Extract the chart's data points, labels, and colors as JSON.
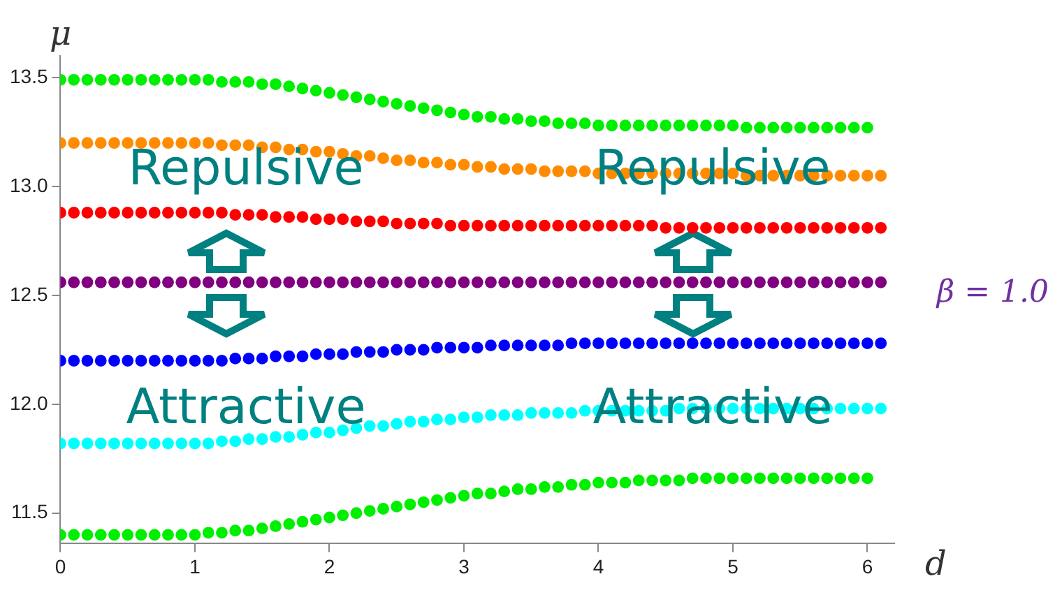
{
  "chart_data": {
    "type": "scatter",
    "xlabel": "d",
    "ylabel": "μ",
    "marker": "circle",
    "grid": false,
    "legend": false,
    "xlim": [
      0,
      6.2
    ],
    "xticks": [
      0,
      1,
      2,
      3,
      4,
      5,
      6
    ],
    "ylim": [
      11.36,
      13.6
    ],
    "yticks": [
      {
        "value": 11.5,
        "label": "11.5"
      },
      {
        "value": 12,
        "label": "12.0"
      },
      {
        "value": 12.5,
        "label": "12.5"
      },
      {
        "value": 13,
        "label": "13.0"
      },
      {
        "value": 13.5,
        "label": "13.5"
      }
    ],
    "x": [
      0,
      0.1,
      0.2,
      0.3,
      0.4,
      0.5,
      0.6,
      0.7,
      0.8,
      0.9,
      1,
      1.1,
      1.2,
      1.3,
      1.4,
      1.5,
      1.6,
      1.7,
      1.8,
      1.9,
      2,
      2.1,
      2.2,
      2.3,
      2.4,
      2.5,
      2.6,
      2.7,
      2.8,
      2.9,
      3,
      3.1,
      3.2,
      3.3,
      3.4,
      3.5,
      3.6,
      3.7,
      3.8,
      3.9,
      4,
      4.1,
      4.2,
      4.3,
      4.4,
      4.5,
      4.6,
      4.7,
      4.8,
      4.9,
      5,
      5.1,
      5.2,
      5.3,
      5.4,
      5.5,
      5.6,
      5.7,
      5.8,
      5.9,
      6,
      6.1
    ],
    "series": [
      {
        "color": "#00ee00",
        "x": [
          0,
          0.1,
          0.2,
          0.3,
          0.4,
          0.5,
          0.6,
          0.7,
          0.8,
          0.9,
          1,
          1.1,
          1.2,
          1.3,
          1.4,
          1.5,
          1.6,
          1.7,
          1.8,
          1.9,
          2,
          2.1,
          2.2,
          2.3,
          2.4,
          2.5,
          2.6,
          2.7,
          2.8,
          2.9,
          3,
          3.1,
          3.2,
          3.3,
          3.4,
          3.5,
          3.6,
          3.7,
          3.8,
          3.9,
          4,
          4.1,
          4.2,
          4.3,
          4.4,
          4.5,
          4.6,
          4.7,
          4.8,
          4.9,
          5,
          5.1,
          5.2,
          5.3,
          5.4,
          5.5,
          5.6,
          5.7,
          5.8,
          5.9,
          6
        ],
        "values": [
          13.49,
          13.49,
          13.49,
          13.49,
          13.49,
          13.49,
          13.49,
          13.49,
          13.49,
          13.49,
          13.49,
          13.49,
          13.48,
          13.48,
          13.48,
          13.47,
          13.47,
          13.46,
          13.45,
          13.44,
          13.43,
          13.42,
          13.41,
          13.4,
          13.39,
          13.38,
          13.37,
          13.36,
          13.35,
          13.34,
          13.33,
          13.32,
          13.32,
          13.31,
          13.31,
          13.3,
          13.3,
          13.29,
          13.29,
          13.29,
          13.28,
          13.28,
          13.28,
          13.28,
          13.28,
          13.28,
          13.28,
          13.28,
          13.28,
          13.28,
          13.28,
          13.27,
          13.27,
          13.27,
          13.27,
          13.27,
          13.27,
          13.27,
          13.27,
          13.27,
          13.27
        ]
      },
      {
        "color": "#ff8c00",
        "values": [
          13.2,
          13.2,
          13.2,
          13.2,
          13.2,
          13.2,
          13.2,
          13.2,
          13.2,
          13.2,
          13.2,
          13.2,
          13.19,
          13.19,
          13.19,
          13.18,
          13.18,
          13.17,
          13.17,
          13.16,
          13.16,
          13.15,
          13.14,
          13.14,
          13.13,
          13.12,
          13.12,
          13.11,
          13.11,
          13.1,
          13.1,
          13.09,
          13.09,
          13.08,
          13.08,
          13.08,
          13.07,
          13.07,
          13.07,
          13.07,
          13.06,
          13.06,
          13.06,
          13.06,
          13.06,
          13.06,
          13.06,
          13.06,
          13.06,
          13.06,
          13.06,
          13.05,
          13.05,
          13.05,
          13.05,
          13.05,
          13.05,
          13.05,
          13.05,
          13.05,
          13.05,
          13.05
        ]
      },
      {
        "color": "#ff0000",
        "values": [
          12.88,
          12.88,
          12.88,
          12.88,
          12.88,
          12.88,
          12.88,
          12.88,
          12.88,
          12.88,
          12.88,
          12.88,
          12.88,
          12.87,
          12.87,
          12.87,
          12.86,
          12.86,
          12.86,
          12.85,
          12.85,
          12.85,
          12.84,
          12.84,
          12.84,
          12.83,
          12.83,
          12.83,
          12.83,
          12.82,
          12.82,
          12.82,
          12.82,
          12.82,
          12.82,
          12.82,
          12.82,
          12.82,
          12.82,
          12.82,
          12.82,
          12.82,
          12.82,
          12.82,
          12.82,
          12.81,
          12.81,
          12.81,
          12.81,
          12.81,
          12.81,
          12.81,
          12.81,
          12.81,
          12.81,
          12.81,
          12.81,
          12.81,
          12.81,
          12.81,
          12.81,
          12.81
        ]
      },
      {
        "color": "#800080",
        "values": [
          12.56,
          12.56,
          12.56,
          12.56,
          12.56,
          12.56,
          12.56,
          12.56,
          12.56,
          12.56,
          12.56,
          12.56,
          12.56,
          12.56,
          12.56,
          12.56,
          12.56,
          12.56,
          12.56,
          12.56,
          12.56,
          12.56,
          12.56,
          12.56,
          12.56,
          12.56,
          12.56,
          12.56,
          12.56,
          12.56,
          12.56,
          12.56,
          12.56,
          12.56,
          12.56,
          12.56,
          12.56,
          12.56,
          12.56,
          12.56,
          12.56,
          12.56,
          12.56,
          12.56,
          12.56,
          12.56,
          12.56,
          12.56,
          12.56,
          12.56,
          12.56,
          12.56,
          12.56,
          12.56,
          12.56,
          12.56,
          12.56,
          12.56,
          12.56,
          12.56,
          12.56,
          12.56
        ]
      },
      {
        "color": "#0000ff",
        "values": [
          12.2,
          12.2,
          12.2,
          12.2,
          12.2,
          12.2,
          12.2,
          12.2,
          12.2,
          12.2,
          12.2,
          12.2,
          12.2,
          12.21,
          12.21,
          12.21,
          12.22,
          12.22,
          12.22,
          12.23,
          12.23,
          12.23,
          12.24,
          12.24,
          12.24,
          12.25,
          12.25,
          12.25,
          12.26,
          12.26,
          12.26,
          12.26,
          12.27,
          12.27,
          12.27,
          12.27,
          12.27,
          12.27,
          12.28,
          12.28,
          12.28,
          12.28,
          12.28,
          12.28,
          12.28,
          12.28,
          12.28,
          12.28,
          12.28,
          12.28,
          12.28,
          12.28,
          12.28,
          12.28,
          12.28,
          12.28,
          12.28,
          12.28,
          12.28,
          12.28,
          12.28,
          12.28
        ]
      },
      {
        "color": "#00ffff",
        "values": [
          11.82,
          11.82,
          11.82,
          11.82,
          11.82,
          11.82,
          11.82,
          11.82,
          11.82,
          11.82,
          11.82,
          11.82,
          11.83,
          11.83,
          11.84,
          11.84,
          11.85,
          11.85,
          11.86,
          11.87,
          11.87,
          11.88,
          11.89,
          11.9,
          11.9,
          11.91,
          11.92,
          11.92,
          11.93,
          11.93,
          11.94,
          11.94,
          11.95,
          11.95,
          11.95,
          11.96,
          11.96,
          11.96,
          11.96,
          11.97,
          11.97,
          11.97,
          11.97,
          11.97,
          11.97,
          11.97,
          11.98,
          11.98,
          11.98,
          11.98,
          11.98,
          11.98,
          11.98,
          11.98,
          11.98,
          11.98,
          11.98,
          11.98,
          11.98,
          11.98,
          11.98,
          11.98
        ]
      },
      {
        "color": "#00ee00",
        "x": [
          0,
          0.1,
          0.2,
          0.3,
          0.4,
          0.5,
          0.6,
          0.7,
          0.8,
          0.9,
          1,
          1.1,
          1.2,
          1.3,
          1.4,
          1.5,
          1.6,
          1.7,
          1.8,
          1.9,
          2,
          2.1,
          2.2,
          2.3,
          2.4,
          2.5,
          2.6,
          2.7,
          2.8,
          2.9,
          3,
          3.1,
          3.2,
          3.3,
          3.4,
          3.5,
          3.6,
          3.7,
          3.8,
          3.9,
          4,
          4.1,
          4.2,
          4.3,
          4.4,
          4.5,
          4.6,
          4.7,
          4.8,
          4.9,
          5,
          5.1,
          5.2,
          5.3,
          5.4,
          5.5,
          5.6,
          5.7,
          5.8,
          5.9,
          6
        ],
        "values": [
          11.4,
          11.4,
          11.4,
          11.4,
          11.4,
          11.4,
          11.4,
          11.4,
          11.4,
          11.4,
          11.4,
          11.41,
          11.41,
          11.42,
          11.42,
          11.43,
          11.44,
          11.45,
          11.46,
          11.47,
          11.48,
          11.49,
          11.5,
          11.51,
          11.52,
          11.53,
          11.54,
          11.55,
          11.56,
          11.57,
          11.58,
          11.59,
          11.59,
          11.6,
          11.61,
          11.61,
          11.62,
          11.62,
          11.63,
          11.63,
          11.64,
          11.64,
          11.64,
          11.65,
          11.65,
          11.65,
          11.65,
          11.66,
          11.66,
          11.66,
          11.66,
          11.66,
          11.66,
          11.66,
          11.66,
          11.66,
          11.66,
          11.66,
          11.66,
          11.66,
          11.66
        ]
      }
    ],
    "annotations": [
      "Repulsive",
      "Repulsive",
      "Attractive",
      "Attractive",
      {
        "text": "β = 1.0",
        "x": 6.1,
        "y": 12.56
      }
    ]
  }
}
